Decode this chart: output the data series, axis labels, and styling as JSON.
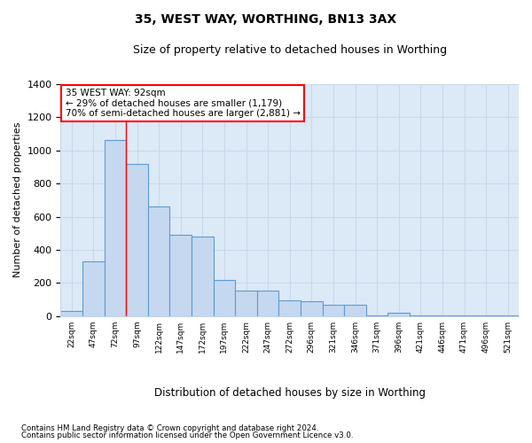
{
  "title1": "35, WEST WAY, WORTHING, BN13 3AX",
  "title2": "Size of property relative to detached houses in Worthing",
  "xlabel": "Distribution of detached houses by size in Worthing",
  "ylabel": "Number of detached properties",
  "annotation_line1": "35 WEST WAY: 92sqm",
  "annotation_line2": "← 29% of detached houses are smaller (1,179)",
  "annotation_line3": "70% of semi-detached houses are larger (2,881) →",
  "footnote1": "Contains HM Land Registry data © Crown copyright and database right 2024.",
  "footnote2": "Contains public sector information licensed under the Open Government Licence v3.0.",
  "bin_labels": [
    "22sqm",
    "47sqm",
    "72sqm",
    "97sqm",
    "122sqm",
    "147sqm",
    "172sqm",
    "197sqm",
    "222sqm",
    "247sqm",
    "272sqm",
    "296sqm",
    "321sqm",
    "346sqm",
    "371sqm",
    "396sqm",
    "421sqm",
    "446sqm",
    "471sqm",
    "496sqm",
    "521sqm"
  ],
  "bar_values": [
    30,
    330,
    1060,
    920,
    660,
    490,
    480,
    220,
    155,
    155,
    95,
    90,
    70,
    70,
    5,
    20,
    5,
    5,
    5,
    5,
    5
  ],
  "bar_color": "#c5d8f0",
  "bar_edge_color": "#5b9bd5",
  "vline_x_index": 2.5,
  "bg_color": "#dce9f7",
  "grid_color": "#c8d8ec",
  "ylim": [
    0,
    1400
  ],
  "yticks": [
    0,
    200,
    400,
    600,
    800,
    1000,
    1200,
    1400
  ]
}
